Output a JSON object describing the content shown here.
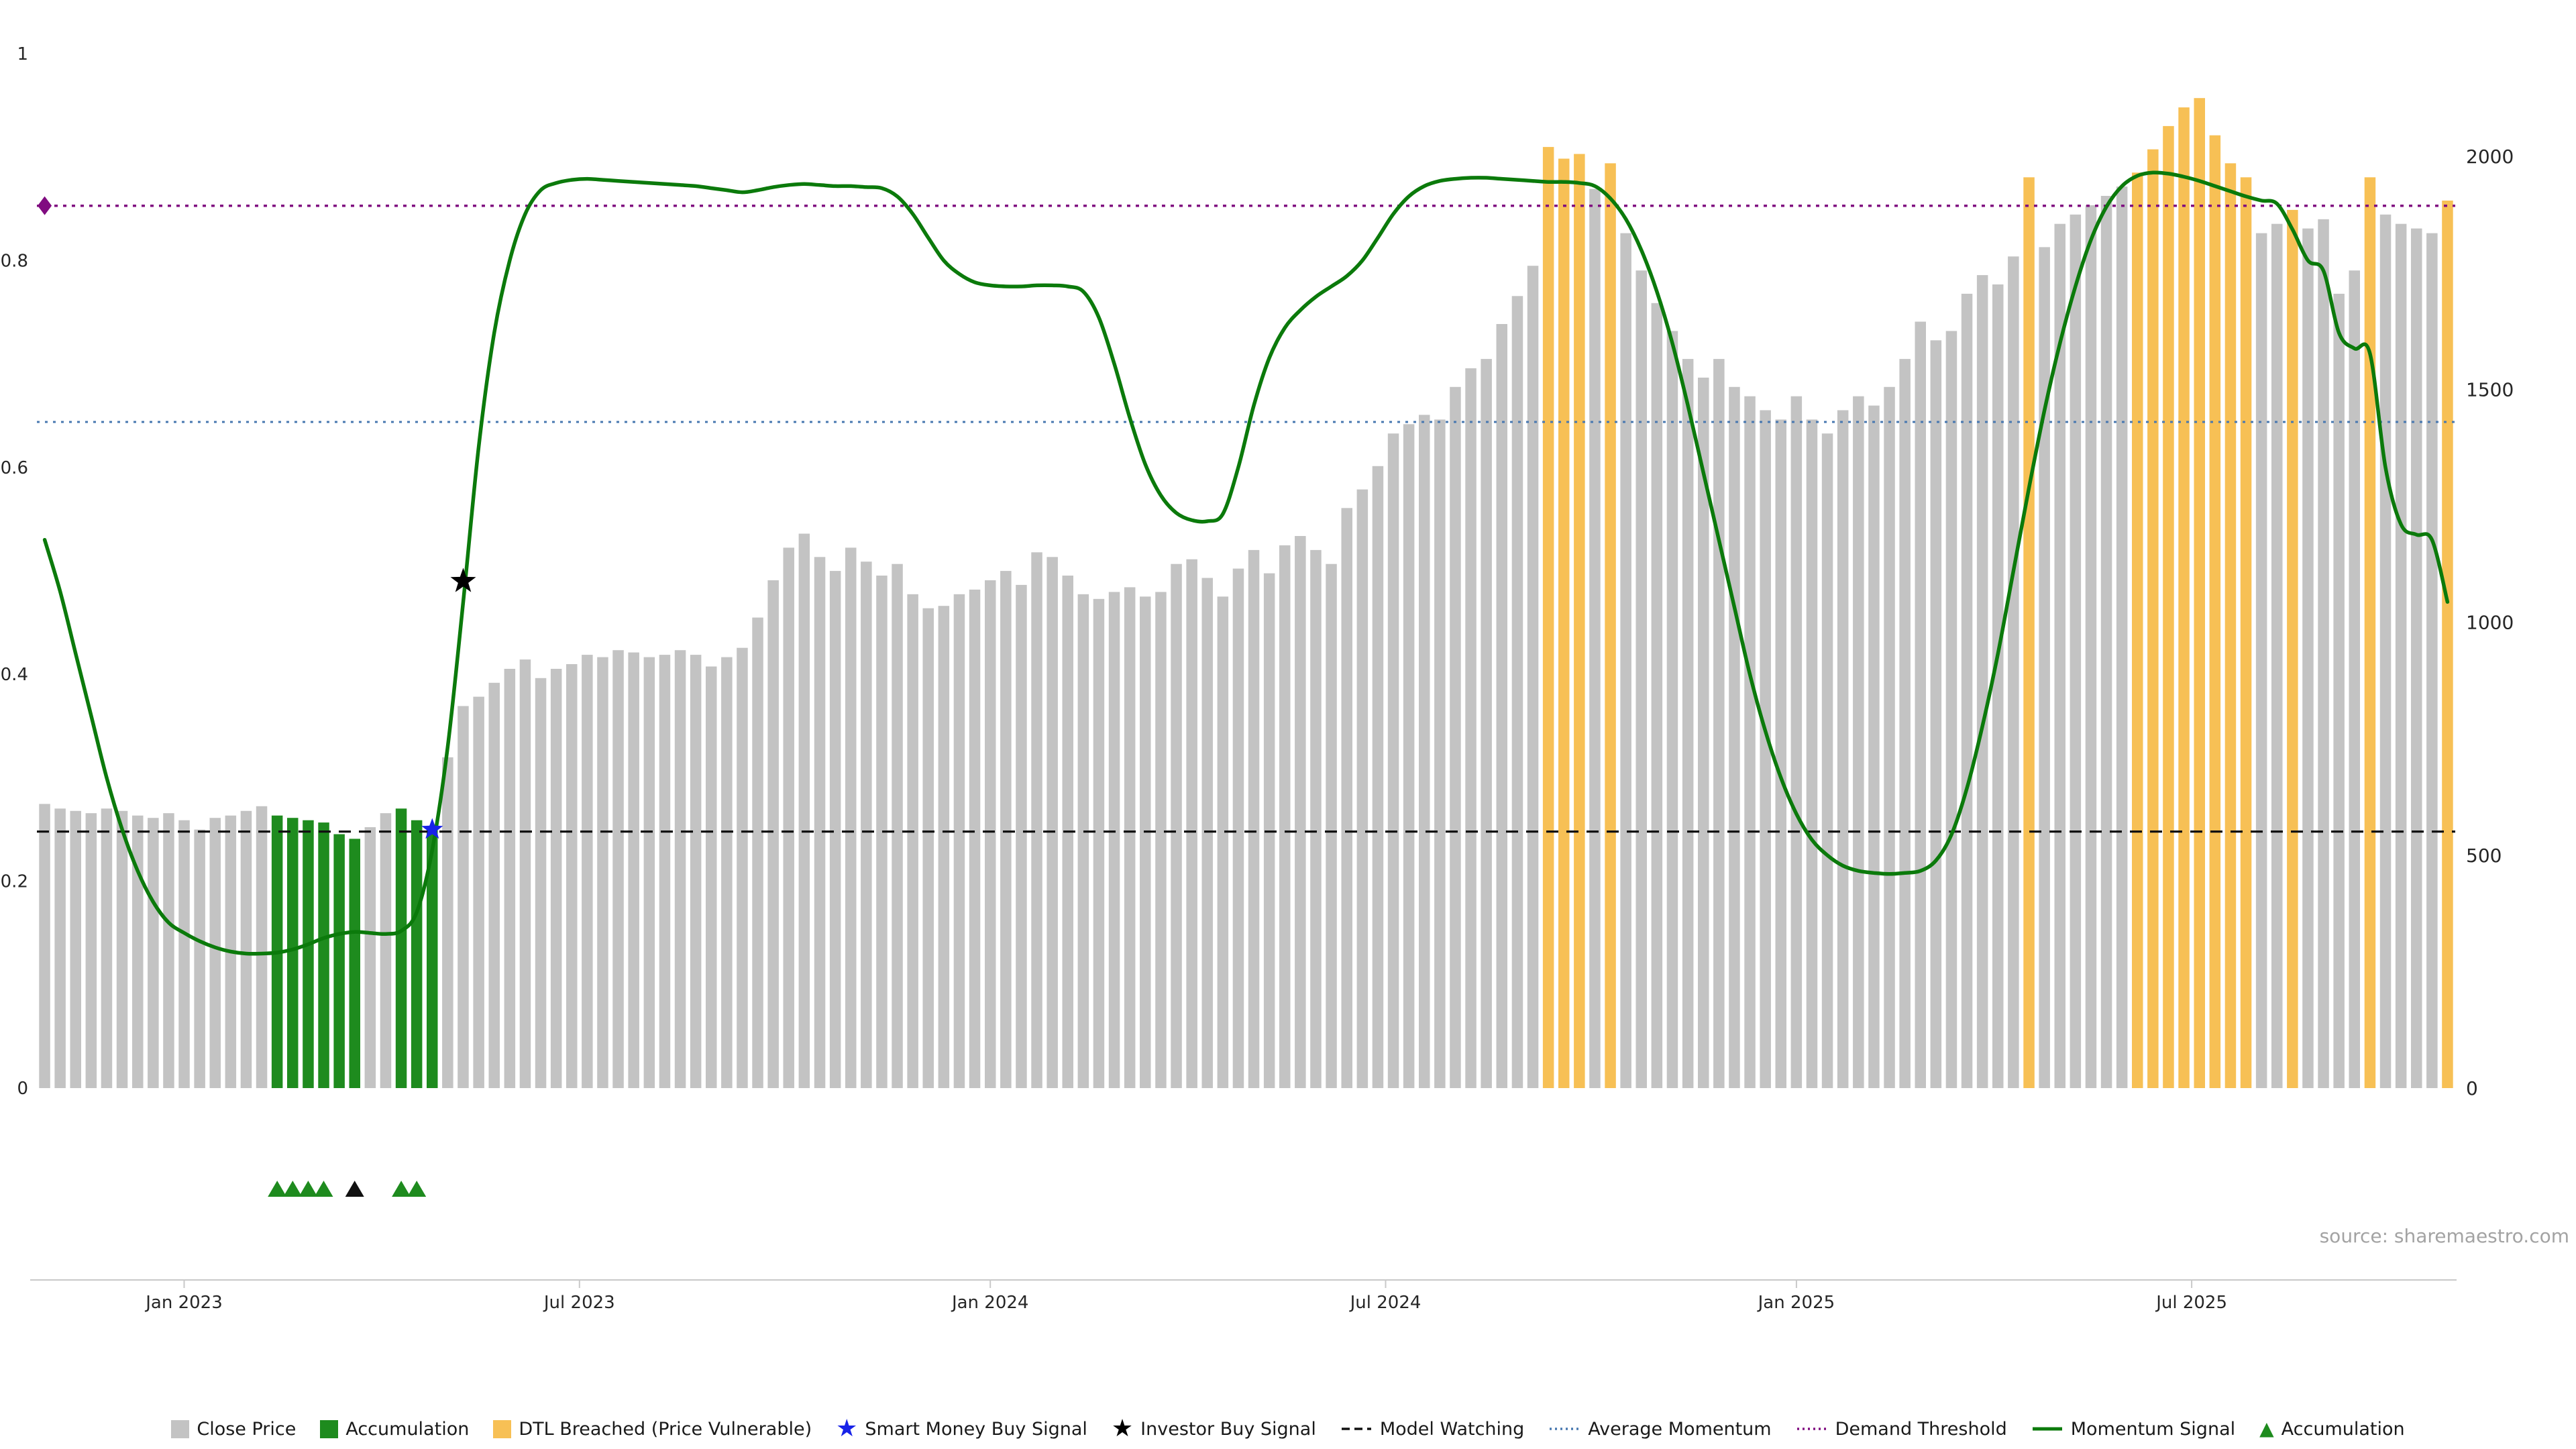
{
  "source_note": "source: sharemaestro.com",
  "colors": {
    "close_price_bar": "#c3c3c3",
    "accumulation_bar": "#1e8b1e",
    "dtl_bar": "#f7c055",
    "momentum_line": "#0b7a0b",
    "average_momentum_line": "#4878b0",
    "demand_threshold_line": "#800b80",
    "model_watching_line": "#111111",
    "smart_money_star": "#1823e8",
    "investor_star": "#000000",
    "axis_text": "#262626",
    "axis_line": "#c9c9c9",
    "source_text": "#a3a3a3"
  },
  "chart_data": {
    "type": "bar",
    "title": "",
    "left_axis": {
      "range": [
        0,
        1
      ],
      "ticks": [
        {
          "label": "0",
          "value": 0
        },
        {
          "label": "0.2",
          "value": 0.2
        },
        {
          "label": "0.4",
          "value": 0.4
        },
        {
          "label": "0.6",
          "value": 0.6
        },
        {
          "label": "0.8",
          "value": 0.8
        },
        {
          "label": "1",
          "value": 1
        }
      ]
    },
    "right_axis": {
      "range": [
        0,
        2150
      ],
      "ticks": [
        {
          "label": "0",
          "value": 0
        },
        {
          "label": "500",
          "value": 500
        },
        {
          "label": "1000",
          "value": 1000
        },
        {
          "label": "1500",
          "value": 1500
        },
        {
          "label": "2000",
          "value": 2000
        }
      ]
    },
    "x_axis": {
      "labels": [
        {
          "text": "Jan 2023",
          "index": 9
        },
        {
          "text": "Jul 2023",
          "index": 34.5
        },
        {
          "text": "Jan 2024",
          "index": 61
        },
        {
          "text": "Jul 2024",
          "index": 86.5
        },
        {
          "text": "Jan 2025",
          "index": 113
        },
        {
          "text": "Jul 2025",
          "index": 138.5
        }
      ]
    },
    "series": {
      "close_price": [
        610,
        600,
        595,
        590,
        600,
        595,
        585,
        580,
        590,
        575,
        555,
        580,
        585,
        595,
        605,
        585,
        580,
        575,
        570,
        545,
        535,
        560,
        590,
        600,
        575,
        555,
        710,
        820,
        840,
        870,
        900,
        920,
        880,
        900,
        910,
        930,
        925,
        940,
        935,
        925,
        930,
        940,
        930,
        905,
        925,
        945,
        1010,
        1090,
        1160,
        1190,
        1140,
        1110,
        1160,
        1130,
        1100,
        1125,
        1060,
        1030,
        1035,
        1060,
        1070,
        1090,
        1110,
        1080,
        1150,
        1140,
        1100,
        1060,
        1050,
        1065,
        1075,
        1055,
        1065,
        1125,
        1135,
        1095,
        1055,
        1115,
        1155,
        1105,
        1165,
        1185,
        1155,
        1125,
        1245,
        1285,
        1335,
        1405,
        1425,
        1445,
        1435,
        1505,
        1545,
        1565,
        1640,
        1700,
        1765,
        2020,
        1995,
        2005,
        1930,
        1985,
        1835,
        1755,
        1685,
        1625,
        1565,
        1525,
        1565,
        1505,
        1485,
        1455,
        1435,
        1485,
        1435,
        1405,
        1455,
        1485,
        1465,
        1505,
        1565,
        1645,
        1605,
        1625,
        1705,
        1745,
        1725,
        1785,
        1955,
        1805,
        1855,
        1875,
        1895,
        1915,
        1935,
        1965,
        2015,
        2065,
        2105,
        2125,
        2045,
        1985,
        1955,
        1835,
        1855,
        1885,
        1845,
        1865,
        1705,
        1755,
        1955,
        1875,
        1855,
        1845,
        1835,
        1905
      ],
      "momentum_signal": [
        0.53,
        0.48,
        0.42,
        0.36,
        0.3,
        0.25,
        0.21,
        0.18,
        0.16,
        0.15,
        0.142,
        0.136,
        0.132,
        0.13,
        0.13,
        0.131,
        0.134,
        0.139,
        0.145,
        0.149,
        0.151,
        0.15,
        0.149,
        0.152,
        0.17,
        0.23,
        0.33,
        0.47,
        0.62,
        0.73,
        0.8,
        0.845,
        0.868,
        0.875,
        0.878,
        0.879,
        0.878,
        0.877,
        0.876,
        0.875,
        0.874,
        0.873,
        0.872,
        0.87,
        0.868,
        0.866,
        0.868,
        0.871,
        0.873,
        0.874,
        0.873,
        0.872,
        0.872,
        0.871,
        0.87,
        0.862,
        0.845,
        0.822,
        0.8,
        0.787,
        0.779,
        0.776,
        0.775,
        0.775,
        0.776,
        0.776,
        0.775,
        0.77,
        0.745,
        0.7,
        0.648,
        0.603,
        0.573,
        0.556,
        0.549,
        0.548,
        0.555,
        0.6,
        0.66,
        0.706,
        0.735,
        0.752,
        0.765,
        0.775,
        0.785,
        0.8,
        0.822,
        0.845,
        0.862,
        0.872,
        0.877,
        0.879,
        0.88,
        0.88,
        0.879,
        0.878,
        0.877,
        0.876,
        0.876,
        0.875,
        0.872,
        0.86,
        0.84,
        0.81,
        0.77,
        0.72,
        0.66,
        0.595,
        0.53,
        0.465,
        0.4,
        0.345,
        0.3,
        0.265,
        0.24,
        0.225,
        0.215,
        0.21,
        0.208,
        0.207,
        0.208,
        0.21,
        0.22,
        0.245,
        0.29,
        0.35,
        0.42,
        0.5,
        0.58,
        0.655,
        0.72,
        0.775,
        0.82,
        0.852,
        0.872,
        0.882,
        0.885,
        0.884,
        0.881,
        0.877,
        0.872,
        0.867,
        0.862,
        0.858,
        0.855,
        0.83,
        0.8,
        0.79,
        0.73,
        0.715,
        0.71,
        0.6,
        0.545,
        0.535,
        0.53,
        0.47
      ]
    },
    "accumulation_indices": [
      15,
      16,
      17,
      18,
      19,
      20,
      23,
      24,
      25
    ],
    "dtl_breached_indices": [
      97,
      98,
      99,
      101,
      128,
      135,
      136,
      137,
      138,
      139,
      140,
      141,
      142,
      145,
      150,
      155
    ],
    "reference_lines": [
      {
        "name": "Demand Threshold",
        "value": 0.853,
        "color": "#800b80",
        "dash": "5 8",
        "width": 3.5
      },
      {
        "name": "Average Momentum",
        "value": 0.644,
        "color": "#4878b0",
        "dash": "4 8",
        "width": 3
      },
      {
        "name": "Model Watching",
        "value": 0.248,
        "color": "#111111",
        "dash": "18 12",
        "width": 3.2
      }
    ],
    "markers": {
      "demand_diamond": {
        "index": 0,
        "value": 0.853,
        "color": "#800b80"
      },
      "smart_money_buy": {
        "index": 25,
        "value": 0.25,
        "color": "#1823e8"
      },
      "investor_buy": {
        "index": 27,
        "value": 0.49,
        "color": "#000000"
      },
      "accumulation_triangles": [
        {
          "index": 15,
          "color": "#1e8b1e"
        },
        {
          "index": 16,
          "color": "#1e8b1e"
        },
        {
          "index": 17,
          "color": "#1e8b1e"
        },
        {
          "index": 18,
          "color": "#1e8b1e"
        },
        {
          "index": 20,
          "color": "#111111"
        },
        {
          "index": 23,
          "color": "#1e8b1e"
        },
        {
          "index": 24,
          "color": "#1e8b1e"
        }
      ]
    }
  },
  "legend": {
    "items": [
      {
        "icon": "square",
        "color": "#c3c3c3",
        "label": "Close Price"
      },
      {
        "icon": "square",
        "color": "#1e8b1e",
        "label": "Accumulation"
      },
      {
        "icon": "square",
        "color": "#f7c055",
        "label": "DTL Breached (Price Vulnerable)"
      },
      {
        "icon": "star",
        "color": "#1823e8",
        "label": "Smart Money Buy Signal"
      },
      {
        "icon": "star",
        "color": "#000000",
        "label": "Investor Buy Signal"
      },
      {
        "icon": "dash-line",
        "color": "#111111",
        "label": "Model Watching"
      },
      {
        "icon": "dot-line",
        "color": "#4878b0",
        "label": "Average Momentum"
      },
      {
        "icon": "dot-line",
        "color": "#800b80",
        "label": "Demand Threshold"
      },
      {
        "icon": "solid-line",
        "color": "#0b7a0b",
        "label": "Momentum Signal"
      },
      {
        "icon": "triangle",
        "color": "#1e8b1e",
        "label": "Accumulation"
      }
    ]
  }
}
